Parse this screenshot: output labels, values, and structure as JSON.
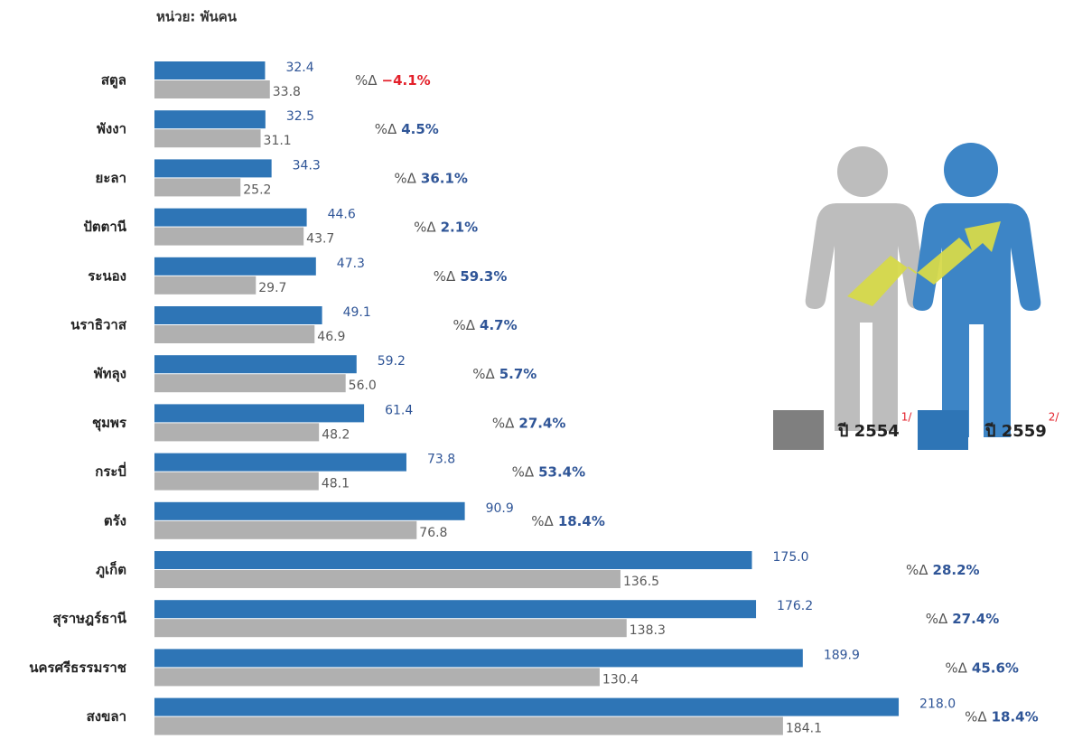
{
  "chart_data": {
    "type": "bar",
    "orientation": "horizontal",
    "unit_label": "หน่วย: พันคน",
    "categories": [
      "สตูล",
      "พังงา",
      "ยะลา",
      "ปัตตานี",
      "ระนอง",
      "นราธิวาส",
      "พัทลุง",
      "ชุมพร",
      "กระบี่",
      "ตรัง",
      "ภูเก็ต",
      "สุราษฎร์ธานี",
      "นครศรีธรรมราช",
      "สงขลา"
    ],
    "series": [
      {
        "name": "ปี 2559",
        "footnote": "2/",
        "color": "#2e75b6",
        "label_color": "#2f5597",
        "values": [
          32.4,
          32.5,
          34.3,
          44.6,
          47.3,
          49.1,
          59.2,
          61.4,
          73.8,
          90.9,
          175.0,
          176.2,
          189.9,
          218.0
        ],
        "value_labels": [
          "32.4",
          "32.5",
          "34.3",
          "44.6",
          "47.3",
          "49.1",
          "59.2",
          "61.4",
          "73.8",
          "90.9",
          "175.0",
          "176.2",
          "189.9",
          "218.0"
        ]
      },
      {
        "name": "ปี 2554",
        "footnote": "1/",
        "color": "#b0b0b0",
        "legend_color": "#7f7f7f",
        "label_color": "#595959",
        "values": [
          33.8,
          31.1,
          25.2,
          43.7,
          29.7,
          46.9,
          56.0,
          48.2,
          48.1,
          76.8,
          136.5,
          138.3,
          130.4,
          184.1
        ],
        "value_labels": [
          "33.8",
          "31.1",
          "25.2",
          "43.7",
          "29.7",
          "46.9",
          "56.0",
          "48.2",
          "48.1",
          "76.8",
          "136.5",
          "138.3",
          "130.4",
          "184.1"
        ]
      }
    ],
    "change_prefix": "%Δ",
    "changes": {
      "values": [
        -4.1,
        4.5,
        36.1,
        2.1,
        59.3,
        4.7,
        5.7,
        27.4,
        53.4,
        18.4,
        28.2,
        27.4,
        45.6,
        18.4
      ],
      "value_labels": [
        "−4.1%",
        "4.5%",
        "36.1%",
        "2.1%",
        "59.3%",
        "4.7%",
        "5.7%",
        "27.4%",
        "53.4%",
        "18.4%",
        "28.2%",
        "27.4%",
        "45.6%",
        "18.4%"
      ],
      "up_color": "#2f5597",
      "down_color": "#e3202a",
      "footnote_color": "#e3202a"
    }
  }
}
